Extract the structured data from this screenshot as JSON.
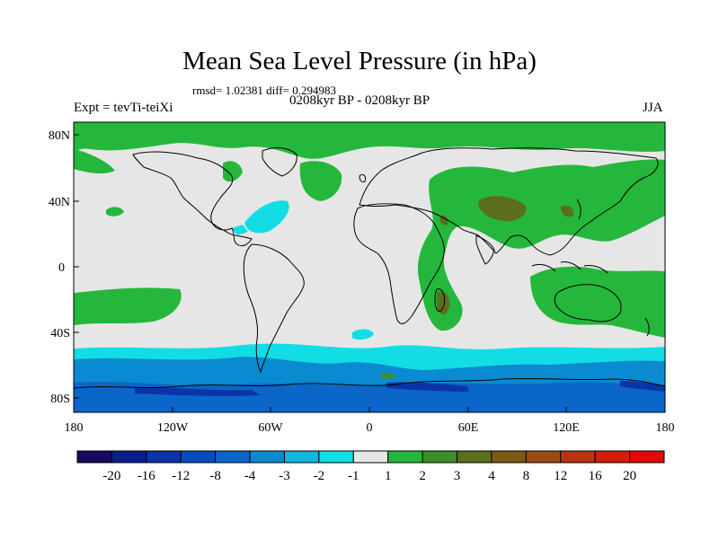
{
  "title": "Mean Sea Level Pressure (in hPa)",
  "stats": "rmsd= 1.02381 diff= 0.294983",
  "experiment": "Expt = tevTi-teiXi",
  "period": "0208kyr BP - 0208kyr BP",
  "season": "JJA",
  "lat_ticks": [
    "80N",
    "40N",
    "0",
    "40S",
    "80S"
  ],
  "lon_ticks": [
    "180",
    "120W",
    "60W",
    "0",
    "60E",
    "120E",
    "180"
  ],
  "colorbar": {
    "labels": [
      "-20",
      "-16",
      "-12",
      "-8",
      "-4",
      "-3",
      "-2",
      "-1",
      "1",
      "2",
      "3",
      "4",
      "8",
      "12",
      "16",
      "20"
    ],
    "colors": [
      "#1a0a5e",
      "#0a1f8c",
      "#0a34a8",
      "#0a4cc0",
      "#0a66c8",
      "#0a8ad0",
      "#13b4dd",
      "#12dde4",
      "#e6e6e6",
      "#25b73c",
      "#3f8d2a",
      "#5a6e1c",
      "#7e5a1a",
      "#9c4a18",
      "#b83412",
      "#d21e0a",
      "#e00a0a"
    ]
  },
  "colors": {
    "neutral": "#e6e6e6",
    "positive_small": "#25b73c",
    "positive_mid": "#5a6e1c",
    "negative_small": "#12dde4",
    "negative_mid": "#0a8ad0",
    "negative_large": "#0a34a8"
  }
}
